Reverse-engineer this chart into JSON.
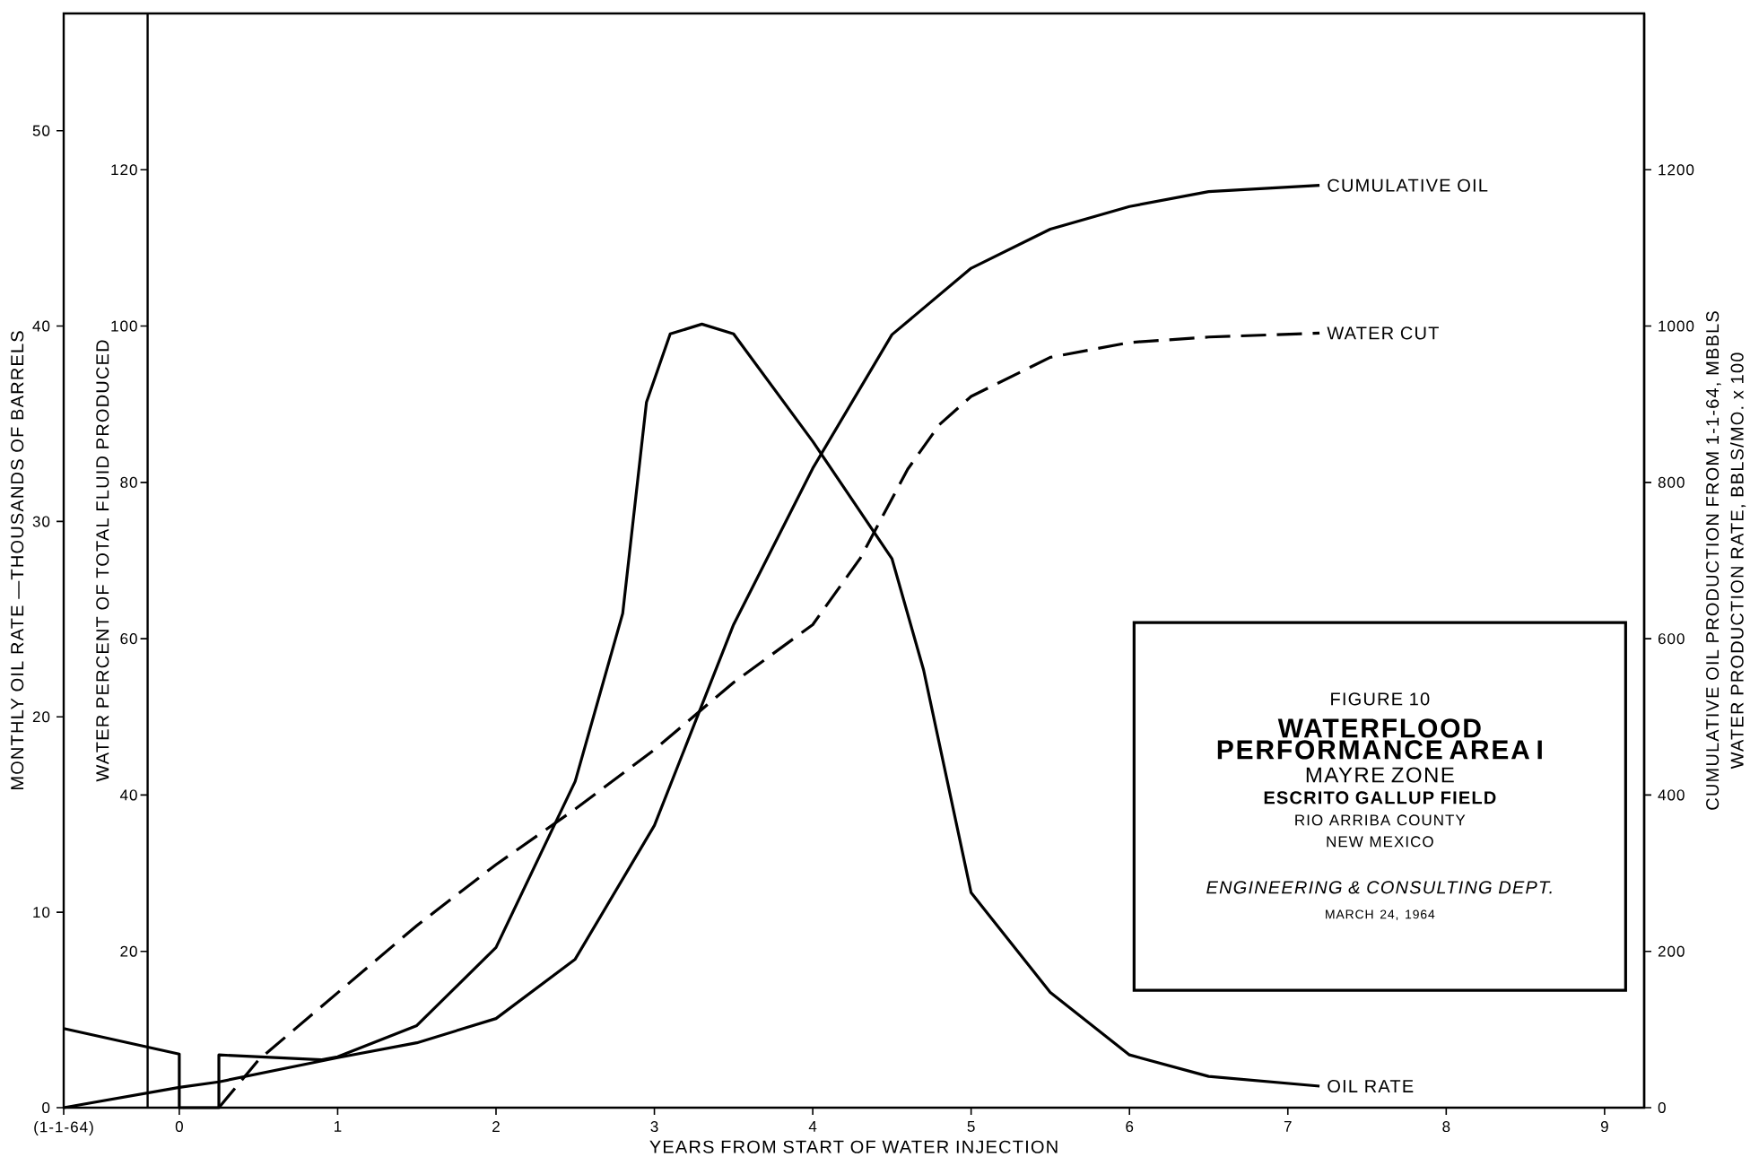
{
  "chart_data": {
    "type": "line",
    "title": "WATERFLOOD PERFORMANCE AREA I",
    "subtitle": "FIGURE 10",
    "xlabel": "YEARS FROM START OF WATER INJECTION",
    "ylabel": "MONTHLY OIL RATE —THOUSANDS OF BARRELS",
    "y2label": "WATER PERCENT OF TOTAL FLUID PRODUCED",
    "y3label": "CUMULATIVE OIL PRODUCTION FROM 1-1-64, MBBLS",
    "annotations": [
      "WATER PRODUCTION RATE, BBLS/MO. x 100",
      "MAYRE ZONE",
      "ESCRITO GALLUP FIELD",
      "RIO ARRIBA COUNTY",
      "NEW MEXICO",
      "ENGINEERING & CONSULTING DEPT.",
      "MARCH 24, 1964"
    ],
    "xlim": [
      -0.73,
      9.25
    ],
    "xticks": [
      {
        "value": -0.73,
        "label": "(1-1-64)"
      },
      0,
      1,
      2,
      3,
      4,
      5,
      6,
      7,
      8,
      9
    ],
    "ylim": [
      0,
      56
    ],
    "yticks": [
      0,
      10,
      20,
      30,
      40,
      50
    ],
    "y2lim": [
      0,
      140
    ],
    "y2ticks": [
      20,
      40,
      60,
      80,
      100,
      120
    ],
    "y3lim": [
      0,
      1400
    ],
    "y3ticks": [
      0,
      200,
      400,
      600,
      800,
      1000,
      1200
    ],
    "marker": "none",
    "series": [
      {
        "name": "OIL RATE",
        "color": "#000000",
        "axis": "y",
        "line_style": "solid",
        "x": [
          -0.73,
          0,
          0,
          0.25,
          0.25,
          0.9,
          1,
          1.5,
          2,
          2.5,
          2.8,
          2.95,
          3.1,
          3.3,
          3.5,
          4,
          4.5,
          4.7,
          5,
          5.5,
          6,
          6.5,
          7.2
        ],
        "values": [
          4.05,
          2.74,
          0,
          0,
          2.7,
          2.45,
          2.6,
          4.2,
          8.2,
          16.7,
          25.3,
          36.1,
          39.6,
          40.1,
          39.6,
          34.1,
          28.1,
          22.4,
          11,
          5.9,
          2.7,
          1.6,
          1.1
        ]
      },
      {
        "name": "CUMULATIVE OIL",
        "color": "#000000",
        "axis": "y3",
        "line_style": "solid",
        "x": [
          -0.73,
          0,
          0.25,
          1,
          1.5,
          2,
          2.5,
          3,
          3.5,
          4,
          4.5,
          5,
          5.5,
          6,
          6.5,
          7.2
        ],
        "values": [
          0,
          26,
          33,
          64,
          83,
          114,
          190,
          361,
          618,
          818,
          989,
          1074,
          1124,
          1153,
          1172,
          1180
        ]
      },
      {
        "name": "WATER CUT",
        "color": "#000000",
        "axis": "y2",
        "line_style": "dashed",
        "x": [
          0.25,
          0.5,
          1,
          1.5,
          2,
          2.5,
          3,
          3.5,
          4,
          4.3,
          4.6,
          4.8,
          5,
          5.5,
          6,
          6.5,
          7.2
        ],
        "values": [
          0,
          6.1,
          14.7,
          23.3,
          31.1,
          38.2,
          45.8,
          54.4,
          61.8,
          70.3,
          81.7,
          87.4,
          91,
          96,
          97.9,
          98.6,
          99.1
        ]
      }
    ]
  }
}
